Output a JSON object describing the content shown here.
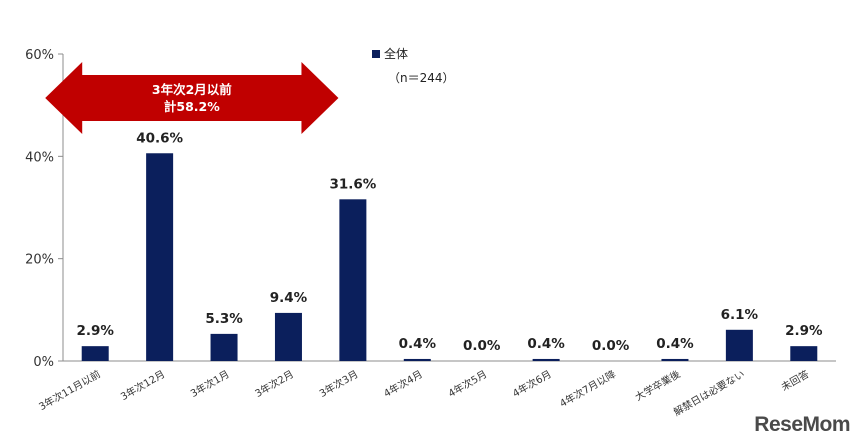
{
  "chart_data": {
    "type": "bar",
    "categories": [
      "3年次11月以前",
      "3年次12月",
      "3年次1月",
      "3年次2月",
      "3年次3月",
      "4年次4月",
      "4年次5月",
      "4年次6月",
      "4年次7月以降",
      "大学卒業後",
      "解禁日は必要ない",
      "未回答"
    ],
    "series": [
      {
        "name": "全体",
        "values": [
          2.9,
          40.6,
          5.3,
          9.4,
          31.6,
          0.4,
          0.0,
          0.4,
          0.0,
          0.4,
          6.1,
          2.9
        ],
        "labels": [
          "2.9%",
          "40.6%",
          "5.3%",
          "9.4%",
          "31.6%",
          "0.4%",
          "0.0%",
          "0.4%",
          "0.0%",
          "0.4%",
          "6.1%",
          "2.9%"
        ],
        "color": "#0b1f5c"
      }
    ],
    "ylim": [
      0,
      60
    ],
    "yticks": [
      0,
      20,
      40,
      60
    ],
    "ytick_labels": [
      "0%",
      "20%",
      "40%",
      "60%"
    ],
    "grid": false,
    "legend": {
      "position": "top-center",
      "sample_n": "（n＝244）"
    },
    "annotation": {
      "line1": "3年次2月以前",
      "line2": "計58.2%",
      "color": "#c00000",
      "span": [
        "3年次11月以前",
        "3年次2月"
      ]
    }
  },
  "watermark": "ReseMom"
}
